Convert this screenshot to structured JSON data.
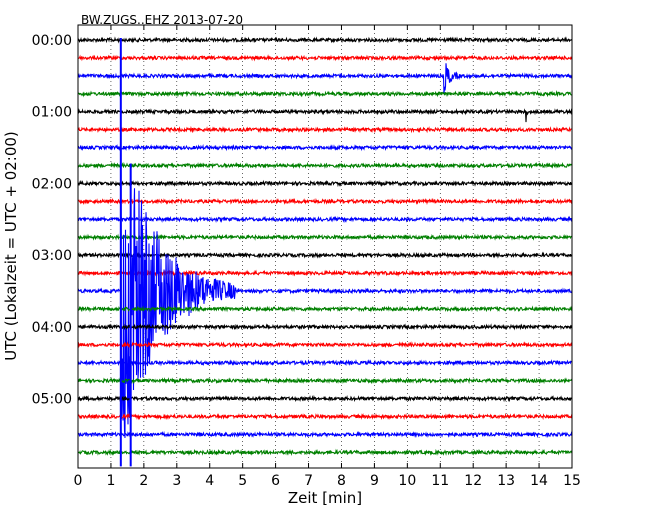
{
  "chart_data": {
    "type": "line",
    "title": "BW.ZUGS..EHZ 2013-07-20",
    "xlabel": "Zeit  [min]",
    "ylabel": "UTC (Lokalzeit = UTC + 02:00)",
    "xlim": [
      0,
      15
    ],
    "x_ticks": [
      "0",
      "1",
      "2",
      "3",
      "4",
      "5",
      "6",
      "7",
      "8",
      "9",
      "10",
      "11",
      "12",
      "13",
      "14",
      "15"
    ],
    "y_ticks": [
      "00:00",
      "01:00",
      "02:00",
      "03:00",
      "04:00",
      "05:00"
    ],
    "grid": true,
    "trace_interval_minutes": 15,
    "trace_colors": [
      "#000000",
      "#ff0000",
      "#0000ff",
      "#008000"
    ],
    "traces_count": 24,
    "events": [
      {
        "trace": 2,
        "minute": 11.1,
        "amplitude": 1.4,
        "duration_minutes": 0.5,
        "description": "small event"
      },
      {
        "trace": 4,
        "minute": 13.6,
        "amplitude": 1.6,
        "duration_minutes": 0.05,
        "description": "spike"
      },
      {
        "trace": 14,
        "minute": 1.3,
        "amplitude": 12.0,
        "duration_minutes": 3.5,
        "description": "major earthquake coda"
      }
    ],
    "vertical_spikes": [
      {
        "minute": 1.3,
        "from_trace": 0,
        "to_trace": 23,
        "color": "#0000ff"
      },
      {
        "minute": 1.6,
        "from_trace": 7,
        "to_trace": 23,
        "color": "#0000ff"
      }
    ]
  }
}
